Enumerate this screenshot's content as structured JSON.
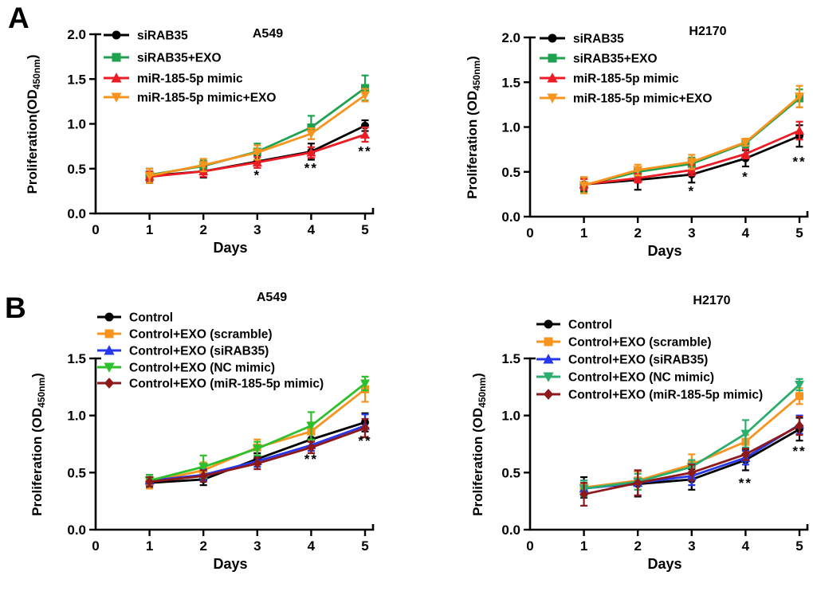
{
  "figure": {
    "panel_a_label": "A",
    "panel_b_label": "B",
    "background_color": "#ffffff",
    "text_color": "#000000"
  },
  "chart_data": [
    {
      "type": "line",
      "panel": "A",
      "title": "A549",
      "xlabel": "Days",
      "ylabel": {
        "prefix": "Proliferation(OD",
        "sub": "450nm",
        "suffix": ")"
      },
      "xlim": [
        0,
        5
      ],
      "ylim": [
        0,
        2
      ],
      "xtick_labels": [
        "0",
        "1",
        "2",
        "3",
        "4",
        "5"
      ],
      "yticks": [
        {
          "v": 0.0,
          "label": "0.0"
        },
        {
          "v": 0.5,
          "label": "0.5"
        },
        {
          "v": 1.0,
          "label": "1.0"
        },
        {
          "v": 1.5,
          "label": "1.5"
        },
        {
          "v": 2.0,
          "label": "2.0"
        }
      ],
      "x": [
        1,
        2,
        3,
        4,
        5
      ],
      "series": [
        {
          "name": "siRAB35",
          "color": "#000000",
          "marker": "circle",
          "values": [
            0.42,
            0.47,
            0.58,
            0.69,
            0.98
          ],
          "errors": [
            0.08,
            0.07,
            0.07,
            0.09,
            0.06
          ]
        },
        {
          "name": "siRAB35+EXO",
          "color": "#1FA24F",
          "marker": "square",
          "values": [
            0.43,
            0.53,
            0.69,
            0.96,
            1.4
          ],
          "errors": [
            0.07,
            0.06,
            0.09,
            0.13,
            0.14
          ]
        },
        {
          "name": "miR-185-5p mimic",
          "color": "#EC1B24",
          "marker": "triangle-up",
          "values": [
            0.41,
            0.47,
            0.57,
            0.68,
            0.88
          ],
          "errors": [
            0.06,
            0.06,
            0.06,
            0.06,
            0.08
          ]
        },
        {
          "name": "miR-185-5p mimic+EXO",
          "color": "#F7941E",
          "marker": "triangle-down",
          "values": [
            0.42,
            0.54,
            0.68,
            0.89,
            1.32
          ],
          "errors": [
            0.08,
            0.07,
            0.08,
            0.06,
            0.07
          ]
        }
      ],
      "significance": [
        {
          "day": 3,
          "od": 0.43,
          "text": "*"
        },
        {
          "day": 4,
          "od": 0.51,
          "text": "**"
        },
        {
          "day": 5,
          "od": 0.7,
          "text": "**"
        }
      ]
    },
    {
      "type": "line",
      "panel": "A",
      "title": "H2170",
      "xlabel": "Days",
      "ylabel": {
        "prefix": "Proliferation (OD",
        "sub": "450nm",
        "suffix": ")"
      },
      "xlim": [
        0,
        5
      ],
      "ylim": [
        0,
        2
      ],
      "xtick_labels": [
        "0",
        "1",
        "2",
        "3",
        "4",
        "5"
      ],
      "yticks": [
        {
          "v": 0.0,
          "label": "0.0"
        },
        {
          "v": 0.5,
          "label": "0.5"
        },
        {
          "v": 1.0,
          "label": "1.0"
        },
        {
          "v": 1.5,
          "label": "1.5"
        },
        {
          "v": 2.0,
          "label": "2.0"
        }
      ],
      "x": [
        1,
        2,
        3,
        4,
        5
      ],
      "series": [
        {
          "name": "siRAB35",
          "color": "#000000",
          "marker": "circle",
          "values": [
            0.36,
            0.41,
            0.47,
            0.65,
            0.9
          ],
          "errors": [
            0.08,
            0.11,
            0.09,
            0.09,
            0.12
          ]
        },
        {
          "name": "siRAB35+EXO",
          "color": "#1FA24F",
          "marker": "square",
          "values": [
            0.35,
            0.5,
            0.59,
            0.82,
            1.32
          ],
          "errors": [
            0.08,
            0.05,
            0.07,
            0.05,
            0.1
          ]
        },
        {
          "name": "miR-185-5p mimic",
          "color": "#EC1B24",
          "marker": "triangle-up",
          "values": [
            0.36,
            0.43,
            0.52,
            0.7,
            0.96
          ],
          "errors": [
            0.06,
            0.05,
            0.06,
            0.05,
            0.1
          ]
        },
        {
          "name": "miR-185-5p mimic+EXO",
          "color": "#F7941E",
          "marker": "triangle-down",
          "values": [
            0.35,
            0.52,
            0.61,
            0.83,
            1.34
          ],
          "errors": [
            0.09,
            0.06,
            0.08,
            0.04,
            0.12
          ]
        }
      ],
      "significance": [
        {
          "day": 3,
          "od": 0.29,
          "text": "*"
        },
        {
          "day": 4,
          "od": 0.45,
          "text": "*"
        },
        {
          "day": 5,
          "od": 0.62,
          "text": "**"
        }
      ]
    },
    {
      "type": "line",
      "panel": "B",
      "title": "A549",
      "xlabel": "Days",
      "ylabel": {
        "prefix": "Proliferation (OD",
        "sub": "450nm",
        "suffix": ")"
      },
      "xlim": [
        0,
        5
      ],
      "ylim": [
        0,
        1.5
      ],
      "xtick_labels": [
        "0",
        "1",
        "2",
        "3",
        "4",
        "5"
      ],
      "yticks": [
        {
          "v": 0.0,
          "label": "0.0"
        },
        {
          "v": 0.5,
          "label": "0.5"
        },
        {
          "v": 1.0,
          "label": "1.0"
        },
        {
          "v": 1.5,
          "label": "1.5"
        }
      ],
      "x": [
        1,
        2,
        3,
        4,
        5
      ],
      "series": [
        {
          "name": "Control",
          "color": "#000000",
          "marker": "circle",
          "values": [
            0.41,
            0.44,
            0.62,
            0.79,
            0.94
          ],
          "errors": [
            0.04,
            0.05,
            0.05,
            0.06,
            0.08
          ]
        },
        {
          "name": "Control+EXO (scramble)",
          "color": "#F7941E",
          "marker": "square",
          "values": [
            0.42,
            0.52,
            0.72,
            0.86,
            1.23
          ],
          "errors": [
            0.06,
            0.07,
            0.07,
            0.08,
            0.11
          ]
        },
        {
          "name": "Control+EXO (siRAB35)",
          "color": "#2638E9",
          "marker": "triangle-up",
          "values": [
            0.43,
            0.48,
            0.6,
            0.74,
            0.91
          ],
          "errors": [
            0.05,
            0.05,
            0.05,
            0.05,
            0.1
          ]
        },
        {
          "name": "Control+EXO (NC mimic)",
          "color": "#2CC12C",
          "marker": "triangle-down",
          "values": [
            0.43,
            0.55,
            0.71,
            0.91,
            1.28
          ],
          "errors": [
            0.05,
            0.1,
            0.06,
            0.12,
            0.06
          ]
        },
        {
          "name": "Control+EXO (miR-185-5p mimic)",
          "color": "#8E191B",
          "marker": "diamond",
          "values": [
            0.42,
            0.47,
            0.58,
            0.72,
            0.89
          ],
          "errors": [
            0.04,
            0.05,
            0.05,
            0.05,
            0.08
          ]
        }
      ],
      "significance": [
        {
          "day": 4,
          "od": 0.62,
          "text": "**"
        },
        {
          "day": 5,
          "od": 0.78,
          "text": "**"
        }
      ]
    },
    {
      "type": "line",
      "panel": "B",
      "title": "H2170",
      "xlabel": "Days",
      "ylabel": {
        "prefix": "Proliferation (OD",
        "sub": "450nm",
        "suffix": ")"
      },
      "xlim": [
        0,
        5
      ],
      "ylim": [
        0,
        1.5
      ],
      "xtick_labels": [
        "0",
        "1",
        "2",
        "3",
        "4",
        "5"
      ],
      "yticks": [
        {
          "v": 0.0,
          "label": "0.0"
        },
        {
          "v": 0.5,
          "label": "0.5"
        },
        {
          "v": 1.0,
          "label": "1.0"
        },
        {
          "v": 1.5,
          "label": "1.5"
        }
      ],
      "x": [
        1,
        2,
        3,
        4,
        5
      ],
      "series": [
        {
          "name": "Control",
          "color": "#000000",
          "marker": "circle",
          "values": [
            0.37,
            0.4,
            0.44,
            0.61,
            0.88
          ],
          "errors": [
            0.09,
            0.11,
            0.09,
            0.09,
            0.1
          ]
        },
        {
          "name": "Control+EXO (scramble)",
          "color": "#F7941E",
          "marker": "square",
          "values": [
            0.37,
            0.43,
            0.57,
            0.77,
            1.17
          ],
          "errors": [
            0.06,
            0.08,
            0.09,
            0.06,
            0.07
          ]
        },
        {
          "name": "Control+EXO (siRAB35)",
          "color": "#2638E9",
          "marker": "triangle-up",
          "values": [
            0.36,
            0.41,
            0.47,
            0.63,
            0.92
          ],
          "errors": [
            0.07,
            0.11,
            0.08,
            0.06,
            0.08
          ]
        },
        {
          "name": "Control+EXO (NC mimic)",
          "color": "#2BAD6E",
          "marker": "triangle-down",
          "values": [
            0.36,
            0.42,
            0.55,
            0.84,
            1.27
          ],
          "errors": [
            0.07,
            0.07,
            0.06,
            0.12,
            0.05
          ]
        },
        {
          "name": "Control+EXO (miR-185-5p mimic)",
          "color": "#8E191B",
          "marker": "diamond",
          "values": [
            0.31,
            0.41,
            0.5,
            0.66,
            0.91
          ],
          "errors": [
            0.1,
            0.11,
            0.07,
            0.05,
            0.08
          ]
        }
      ],
      "significance": [
        {
          "day": 4,
          "od": 0.41,
          "text": "**"
        },
        {
          "day": 5,
          "od": 0.69,
          "text": "**"
        }
      ]
    }
  ]
}
